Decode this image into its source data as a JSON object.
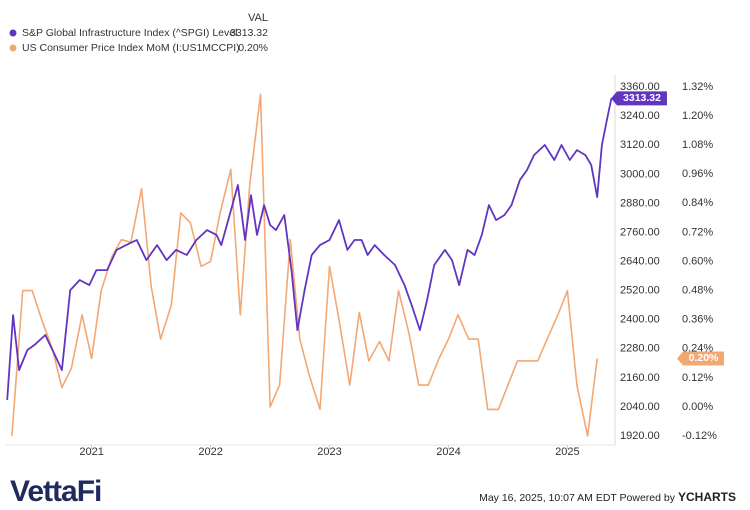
{
  "chart_data": {
    "type": "line",
    "legend_header": "VAL",
    "xlim": [
      2020.28,
      2025.4
    ],
    "xticks": [
      2021,
      2022,
      2023,
      2024,
      2025
    ],
    "ylim": [
      1883,
      3410
    ],
    "yticks": [
      {
        "value": 1920,
        "label": "1920.00"
      },
      {
        "value": 2040,
        "label": "2040.00"
      },
      {
        "value": 2160,
        "label": "2160.00"
      },
      {
        "value": 2280,
        "label": "2280.00"
      },
      {
        "value": 2400,
        "label": "2400.00"
      },
      {
        "value": 2520,
        "label": "2520.00"
      },
      {
        "value": 2640,
        "label": "2640.00"
      },
      {
        "value": 2760,
        "label": "2760.00"
      },
      {
        "value": 2880,
        "label": "2880.00"
      },
      {
        "value": 3000,
        "label": "3000.00"
      },
      {
        "value": 3120,
        "label": "3120.00"
      },
      {
        "value": 3240,
        "label": "3240.00"
      },
      {
        "value": 3360,
        "label": "3360.00"
      }
    ],
    "y2lim": [
      -0.157,
      1.3695
    ],
    "y2ticks": [
      {
        "value": -0.12,
        "label": "-0.12%"
      },
      {
        "value": 0,
        "label": "0.00%"
      },
      {
        "value": 0.12,
        "label": "0.12%"
      },
      {
        "value": 0.24,
        "label": "0.24%"
      },
      {
        "value": 0.36,
        "label": "0.36%"
      },
      {
        "value": 0.48,
        "label": "0.48%"
      },
      {
        "value": 0.6,
        "label": "0.60%"
      },
      {
        "value": 0.72,
        "label": "0.72%"
      },
      {
        "value": 0.84,
        "label": "0.84%"
      },
      {
        "value": 0.96,
        "label": "0.96%"
      },
      {
        "value": 1.08,
        "label": "1.08%"
      },
      {
        "value": 1.2,
        "label": "1.20%"
      },
      {
        "value": 1.32,
        "label": "1.32%"
      }
    ],
    "grid": false,
    "series": [
      {
        "name": "S&P Global Infrastructure Index (^SPGI) Level",
        "color": "#6035c0",
        "axis": "y",
        "x": [
          2020.29,
          2020.34,
          2020.39,
          2020.46,
          2020.52,
          2020.61,
          2020.69,
          2020.75,
          2020.82,
          2020.9,
          2020.98,
          2021.04,
          2021.13,
          2021.21,
          2021.29,
          2021.38,
          2021.46,
          2021.55,
          2021.63,
          2021.71,
          2021.8,
          2021.88,
          2021.97,
          2022.05,
          2022.09,
          2022.16,
          2022.23,
          2022.29,
          2022.34,
          2022.39,
          2022.45,
          2022.5,
          2022.55,
          2022.62,
          2022.68,
          2022.73,
          2022.79,
          2022.85,
          2022.92,
          2023.0,
          2023.08,
          2023.15,
          2023.21,
          2023.27,
          2023.32,
          2023.38,
          2023.46,
          2023.55,
          2023.63,
          2023.69,
          2023.76,
          2023.82,
          2023.88,
          2023.97,
          2024.03,
          2024.09,
          2024.16,
          2024.22,
          2024.28,
          2024.34,
          2024.4,
          2024.47,
          2024.53,
          2024.6,
          2024.66,
          2024.72,
          2024.81,
          2024.89,
          2024.95,
          2025.02,
          2025.08,
          2025.15,
          2025.2,
          2025.25,
          2025.29,
          2025.34,
          2025.37
        ],
        "values": [
          2069,
          2419,
          2192,
          2275,
          2296,
          2337,
          2255,
          2192,
          2522,
          2564,
          2543,
          2605,
          2605,
          2688,
          2708,
          2729,
          2646,
          2708,
          2646,
          2688,
          2667,
          2729,
          2770,
          2750,
          2708,
          2832,
          2956,
          2729,
          2914,
          2750,
          2873,
          2791,
          2770,
          2832,
          2605,
          2357,
          2522,
          2667,
          2708,
          2729,
          2811,
          2688,
          2729,
          2729,
          2667,
          2708,
          2667,
          2626,
          2543,
          2461,
          2357,
          2481,
          2626,
          2688,
          2646,
          2543,
          2688,
          2667,
          2750,
          2873,
          2811,
          2832,
          2873,
          2976,
          3018,
          3080,
          3121,
          3059,
          3121,
          3059,
          3100,
          3080,
          3039,
          2906,
          3121,
          3245,
          3313.32
        ]
      },
      {
        "name": "US Consumer Price Index MoM (I:US1MCCPI)",
        "color": "#f3a873",
        "axis": "y2",
        "x": [
          2020.33,
          2020.42,
          2020.5,
          2020.58,
          2020.67,
          2020.75,
          2020.83,
          2020.92,
          2021.0,
          2021.08,
          2021.17,
          2021.25,
          2021.33,
          2021.42,
          2021.5,
          2021.58,
          2021.67,
          2021.75,
          2021.83,
          2021.92,
          2022.0,
          2022.08,
          2022.17,
          2022.25,
          2022.33,
          2022.42,
          2022.5,
          2022.58,
          2022.67,
          2022.75,
          2022.83,
          2022.92,
          2023.0,
          2023.08,
          2023.17,
          2023.25,
          2023.33,
          2023.42,
          2023.5,
          2023.58,
          2023.67,
          2023.75,
          2023.83,
          2023.92,
          2024.0,
          2024.08,
          2024.17,
          2024.25,
          2024.33,
          2024.42,
          2024.5,
          2024.58,
          2024.67,
          2024.75,
          2024.83,
          2024.92,
          2025.0,
          2025.08,
          2025.17,
          2025.25
        ],
        "values": [
          -0.12,
          0.48,
          0.48,
          0.36,
          0.24,
          0.08,
          0.16,
          0.38,
          0.2,
          0.48,
          0.62,
          0.69,
          0.68,
          0.9,
          0.5,
          0.28,
          0.42,
          0.8,
          0.76,
          0.58,
          0.6,
          0.8,
          0.98,
          0.38,
          0.92,
          1.29,
          0.0,
          0.09,
          0.69,
          0.28,
          0.13,
          -0.01,
          0.58,
          0.36,
          0.09,
          0.39,
          0.19,
          0.27,
          0.19,
          0.48,
          0.3,
          0.09,
          0.09,
          0.2,
          0.28,
          0.38,
          0.28,
          0.28,
          -0.01,
          -0.01,
          0.09,
          0.19,
          0.19,
          0.19,
          0.28,
          0.38,
          0.48,
          0.09,
          -0.12,
          0.2
        ],
        "value_labels": [
          null,
          null,
          null,
          null,
          null,
          null,
          null,
          null,
          null,
          null,
          null,
          null,
          null,
          null,
          null,
          null,
          null,
          null,
          null,
          null,
          null,
          null,
          null,
          null,
          null,
          null,
          null,
          null,
          null,
          null,
          null,
          null,
          null,
          null,
          null,
          null,
          null,
          null,
          null,
          null,
          null,
          null,
          null,
          null,
          null,
          null,
          null,
          null,
          null,
          null,
          null,
          null,
          null,
          null,
          null,
          null,
          null,
          null,
          null,
          "0.20%"
        ]
      }
    ]
  },
  "footer": {
    "brand": "VettaFi",
    "timestamp": "May 16, 2025, 10:07 AM EDT Powered by",
    "provider": "YCHARTS"
  }
}
